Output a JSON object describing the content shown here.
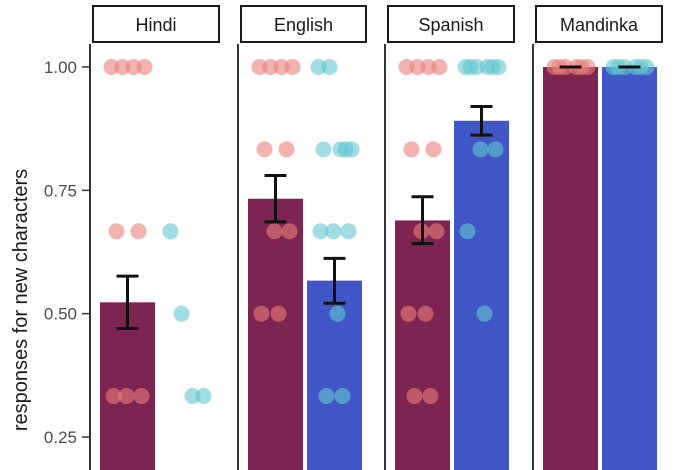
{
  "chart_data": {
    "type": "bar",
    "ylabel": "responses for new characters",
    "ylim": [
      0.2,
      1.05
    ],
    "yticks": [
      1.0,
      0.75,
      0.5,
      0.25
    ],
    "ytick_labels": [
      "1.00",
      "0.75",
      "0.50",
      "0.25"
    ],
    "grid": false,
    "facets": [
      "Hindi",
      "English",
      "Spanish",
      "Mandinka"
    ],
    "series": [
      {
        "color": "#7d2450",
        "point_color": "#ea7e7b",
        "values": [
          0.523,
          0.733,
          0.689,
          1.0
        ],
        "error_low": [
          0.47,
          0.686,
          0.642,
          1.0
        ],
        "error_high": [
          0.576,
          0.78,
          0.737,
          1.0
        ],
        "points": [
          [
            1.0,
            1.0,
            1.0,
            1.0,
            0.667,
            0.667,
            0.333,
            0.333,
            0.333
          ],
          [
            1.0,
            1.0,
            1.0,
            1.0,
            0.833,
            0.833,
            0.667,
            0.667,
            0.5,
            0.5
          ],
          [
            1.0,
            1.0,
            1.0,
            1.0,
            0.833,
            0.833,
            0.667,
            0.667,
            0.5,
            0.5,
            0.333,
            0.333
          ],
          [
            1.0,
            1.0,
            1.0,
            1.0,
            1.0,
            1.0
          ]
        ]
      },
      {
        "color": "#4257c7",
        "point_color": "#63c7cf",
        "values": [
          null,
          0.567,
          0.891,
          1.0
        ],
        "error_low": [
          null,
          0.521,
          0.862,
          1.0
        ],
        "error_high": [
          null,
          0.612,
          0.92,
          1.0
        ],
        "points": [
          [
            0.667,
            0.5,
            0.333,
            0.333
          ],
          [
            1.0,
            1.0,
            0.833,
            0.833,
            0.833,
            0.833,
            0.667,
            0.667,
            0.667,
            0.5,
            0.333,
            0.333
          ],
          [
            1.0,
            1.0,
            1.0,
            1.0,
            1.0,
            1.0,
            0.833,
            0.833,
            0.667,
            0.5
          ],
          [
            1.0,
            1.0,
            1.0,
            1.0,
            1.0,
            1.0
          ]
        ]
      }
    ]
  }
}
